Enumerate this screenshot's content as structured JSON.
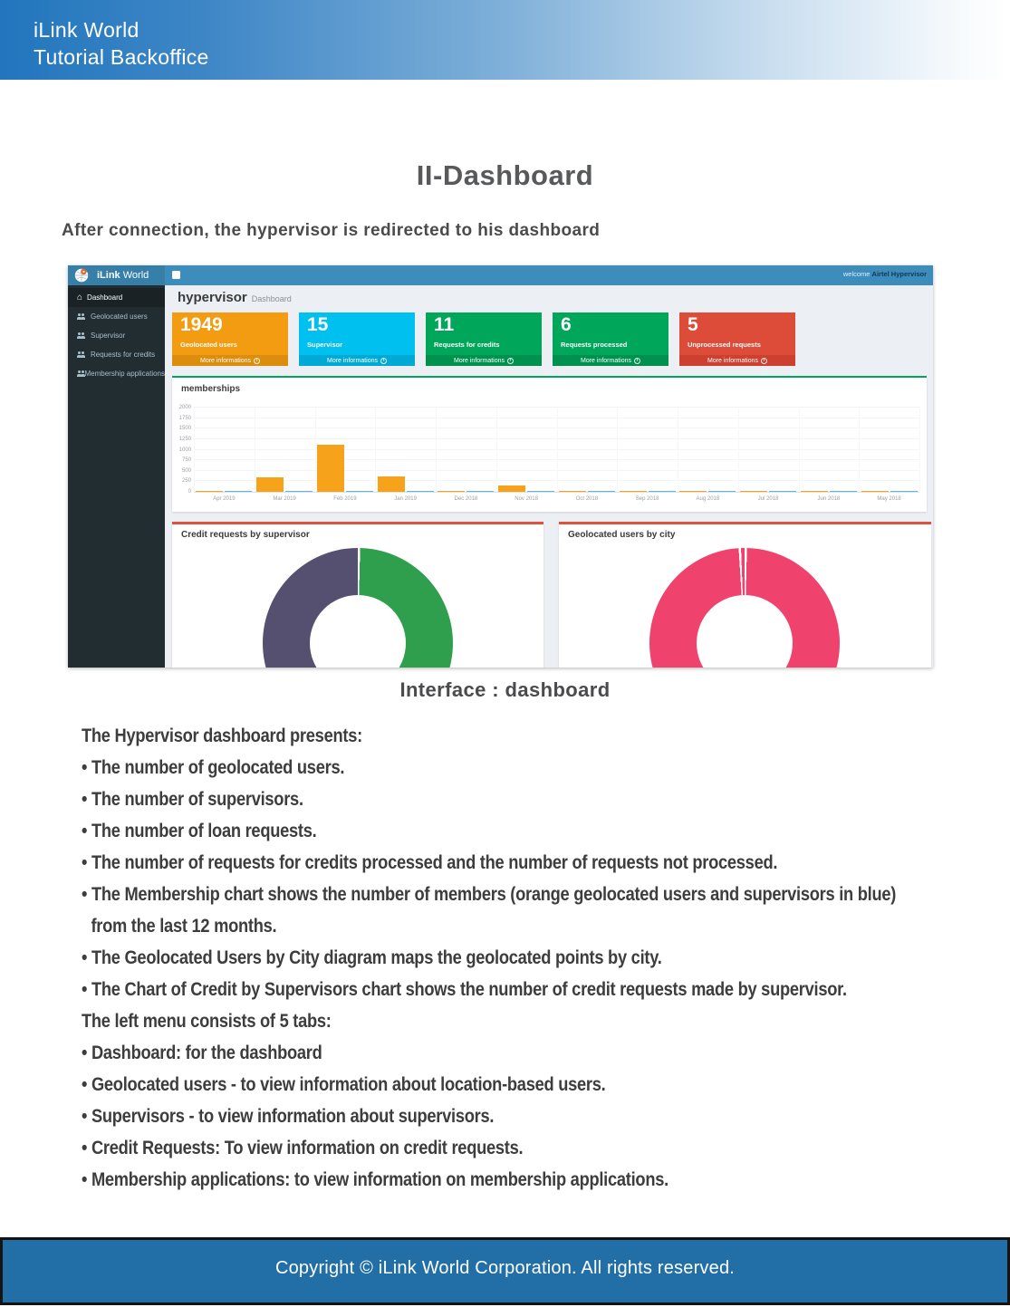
{
  "banner": {
    "line1": "iLink World",
    "line2": "Tutorial Backoffice"
  },
  "title": "II-Dashboard",
  "subtitle": "After connection, the hypervisor is redirected to his dashboard",
  "theme": {
    "navbar": "#3c8dbc",
    "navbar_brand": "#367fa9",
    "sidebar": "#222d32",
    "sidebar_active": "#1a2226",
    "content_bg": "#ecf0f5",
    "box_green_accent": "#00a65a",
    "box_red_accent": "#e0503c"
  },
  "screenshot": {
    "navbar": {
      "logo_icon": "globe-pin-logo",
      "brand_bold": "iLink",
      "brand_rest": " World",
      "menu_icon": "menu-icon",
      "welcome_prefix": "welcome ",
      "welcome_user": "Airtel Hypervisor"
    },
    "sidebar": {
      "items": [
        {
          "label": "Dashboard",
          "icon": "home-icon",
          "active": true
        },
        {
          "label": "Geolocated users",
          "icon": "users-icon",
          "active": false
        },
        {
          "label": "Supervisor",
          "icon": "users-icon",
          "active": false
        },
        {
          "label": "Requests for credits",
          "icon": "users-icon",
          "active": false
        },
        {
          "label": "Membership applications",
          "icon": "users-icon",
          "active": false
        }
      ]
    },
    "page_heading": {
      "title": "hypervisor",
      "subtitle": "Dashboard"
    },
    "stat_cards": [
      {
        "value": "1949",
        "label": "Geolocated users",
        "link": "More informations",
        "icon": "arrow-circle-icon",
        "color": "#f39c12",
        "footer_color": "#dd8d0e"
      },
      {
        "value": "15",
        "label": "Supervisor",
        "link": "More informations",
        "icon": "arrow-circle-icon",
        "color": "#00c0ef",
        "footer_color": "#00aad4"
      },
      {
        "value": "11",
        "label": "Requests for credits",
        "link": "More informations",
        "icon": "arrow-circle-icon",
        "color": "#00a65a",
        "footer_color": "#00914f"
      },
      {
        "value": "6",
        "label": "Requests processed",
        "link": "More informations",
        "icon": "arrow-circle-icon",
        "color": "#00a65a",
        "footer_color": "#00914f"
      },
      {
        "value": "5",
        "label": "Unprocessed requests",
        "link": "More informations",
        "icon": "arrow-circle-icon",
        "color": "#dd4b39",
        "footer_color": "#cd3f2e"
      }
    ]
  },
  "chart_data": [
    {
      "type": "bar",
      "title": "memberships",
      "categories": [
        "Apr 2019",
        "Mar 2019",
        "Feb 2019",
        "Jan 2019",
        "Dec 2018",
        "Nov 2018",
        "Oct 2018",
        "Sep 2018",
        "Aug 2018",
        "Jul 2018",
        "Jun 2018",
        "May 2018"
      ],
      "series": [
        {
          "name": "geolocated users",
          "color": "#f7a21b",
          "values": [
            10,
            340,
            1110,
            360,
            15,
            160,
            10,
            10,
            12,
            12,
            10,
            10
          ]
        },
        {
          "name": "supervisors",
          "color": "#58b9e8",
          "values": [
            8,
            10,
            12,
            28,
            15,
            10,
            10,
            10,
            10,
            10,
            10,
            10
          ]
        }
      ],
      "xlabel": "",
      "ylabel": "",
      "ylim": [
        0,
        2000
      ],
      "yticks": [
        0,
        250,
        500,
        750,
        1000,
        1250,
        1500,
        1750,
        2000
      ],
      "grid": true,
      "legend": "none"
    },
    {
      "type": "pie",
      "title": "Credit requests by supervisor",
      "donut": true,
      "labels_visible": false,
      "slices": [
        {
          "value": 50,
          "color": "#2f9e4d"
        },
        {
          "value": 50,
          "color": "#565070"
        }
      ]
    },
    {
      "type": "pie",
      "title": "Geolocated users by city",
      "donut": true,
      "labels_visible": false,
      "slices": [
        {
          "value": 99,
          "color": "#ef426d"
        },
        {
          "value": 1,
          "color": "#ef426d"
        }
      ]
    }
  ],
  "caption": "Interface : dashboard",
  "body_lines": [
    {
      "text": "The Hypervisor dashboard presents:"
    },
    {
      "text": "• The number of geolocated users."
    },
    {
      "text": "• The number of supervisors."
    },
    {
      "text": "• The number of loan requests."
    },
    {
      "text": "• The number of requests for credits processed and the number of requests not processed."
    },
    {
      "text": "• The Membership chart shows the number of members (orange geolocated users and supervisors in blue)"
    },
    {
      "text": "from the last 12 months.",
      "indent": true
    },
    {
      "text": "• The Geolocated Users by City diagram maps the geolocated points by city."
    },
    {
      "text": "• The Chart of Credit by Supervisors chart shows the number of credit requests made by supervisor."
    },
    {
      "text": "The left menu consists of 5 tabs:"
    },
    {
      "text": "• Dashboard: for the dashboard"
    },
    {
      "text": "• Geolocated users - to view information about location-based users."
    },
    {
      "text": "• Supervisors - to view information about supervisors."
    },
    {
      "text": "• Credit Requests: To view information on credit requests."
    },
    {
      "text": "• Membership applications: to view information on membership applications."
    }
  ],
  "footer": {
    "text": "Copyright © iLink World Corporation. All rights reserved."
  }
}
